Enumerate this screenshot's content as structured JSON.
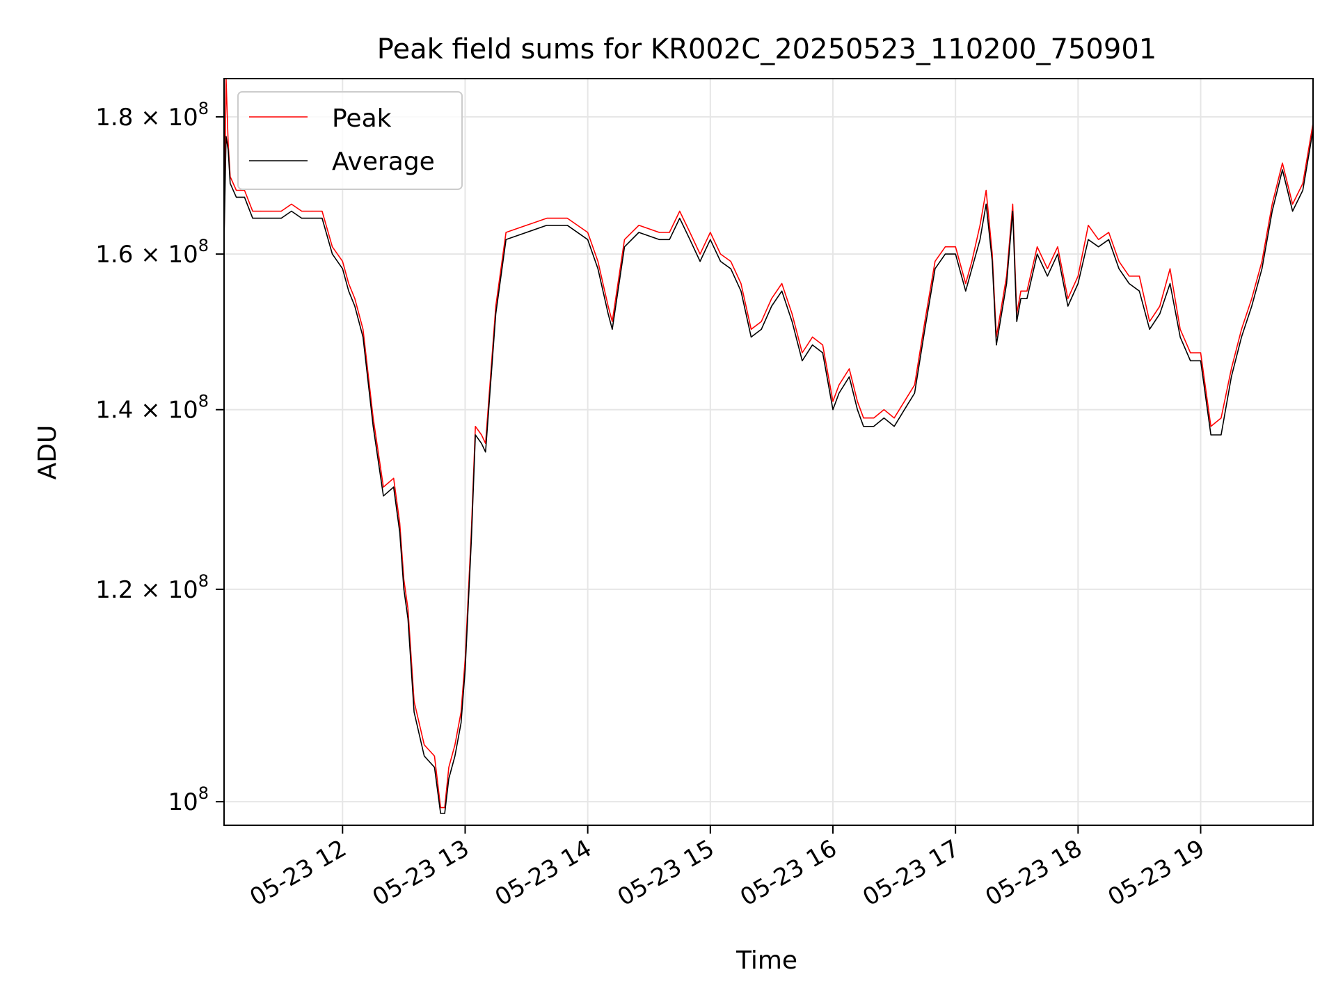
{
  "chart_data": {
    "type": "line",
    "title": "Peak field sums for KR002C_20250523_110200_750901",
    "xlabel": "Time",
    "ylabel": "ADU",
    "yscale": "log",
    "grid": true,
    "legend": {
      "position": "top-left",
      "entries": [
        "Peak",
        "Average"
      ]
    },
    "colors": {
      "Peak": "#ff0000",
      "Average": "#000000",
      "grid": "#e6e6e6"
    },
    "xlim": [
      "05-23 11:02",
      "05-23 19:55"
    ],
    "ylim": [
      98000000,
      186000000
    ],
    "x_ticks": [
      "05-23 12",
      "05-23 13",
      "05-23 14",
      "05-23 15",
      "05-23 16",
      "05-23 17",
      "05-23 18",
      "05-23 19"
    ],
    "y_ticks": [
      {
        "value": 100000000,
        "mantissa": "",
        "exp": "8"
      },
      {
        "value": 120000000,
        "mantissa": "1.2 × ",
        "exp": "8"
      },
      {
        "value": 140000000,
        "mantissa": "1.4 × ",
        "exp": "8"
      },
      {
        "value": 160000000,
        "mantissa": "1.6 × ",
        "exp": "8"
      },
      {
        "value": 180000000,
        "mantissa": "1.8 × ",
        "exp": "8"
      }
    ],
    "series": [
      {
        "name": "Average",
        "x": [
          "05-23 11:02",
          "05-23 11:03",
          "05-23 11:04",
          "05-23 11:05",
          "05-23 11:08",
          "05-23 11:12",
          "05-23 11:16",
          "05-23 11:20",
          "05-23 11:25",
          "05-23 11:30",
          "05-23 11:35",
          "05-23 11:40",
          "05-23 11:45",
          "05-23 11:50",
          "05-23 11:55",
          "05-23 12:00",
          "05-23 12:03",
          "05-23 12:06",
          "05-23 12:10",
          "05-23 12:15",
          "05-23 12:20",
          "05-23 12:25",
          "05-23 12:28",
          "05-23 12:30",
          "05-23 12:32",
          "05-23 12:35",
          "05-23 12:40",
          "05-23 12:45",
          "05-23 12:48",
          "05-23 12:50",
          "05-23 12:52",
          "05-23 12:55",
          "05-23 12:58",
          "05-23 13:00",
          "05-23 13:03",
          "05-23 13:05",
          "05-23 13:08",
          "05-23 13:10",
          "05-23 13:15",
          "05-23 13:20",
          "05-23 13:30",
          "05-23 13:40",
          "05-23 13:50",
          "05-23 14:00",
          "05-23 14:05",
          "05-23 14:10",
          "05-23 14:12",
          "05-23 14:18",
          "05-23 14:25",
          "05-23 14:35",
          "05-23 14:40",
          "05-23 14:45",
          "05-23 14:50",
          "05-23 14:55",
          "05-23 15:00",
          "05-23 15:05",
          "05-23 15:10",
          "05-23 15:15",
          "05-23 15:20",
          "05-23 15:25",
          "05-23 15:30",
          "05-23 15:35",
          "05-23 15:40",
          "05-23 15:45",
          "05-23 15:50",
          "05-23 15:55",
          "05-23 16:00",
          "05-23 16:03",
          "05-23 16:08",
          "05-23 16:12",
          "05-23 16:15",
          "05-23 16:20",
          "05-23 16:25",
          "05-23 16:30",
          "05-23 16:35",
          "05-23 16:40",
          "05-23 16:45",
          "05-23 16:50",
          "05-23 16:55",
          "05-23 17:00",
          "05-23 17:05",
          "05-23 17:08",
          "05-23 17:12",
          "05-23 17:15",
          "05-23 17:18",
          "05-23 17:20",
          "05-23 17:25",
          "05-23 17:28",
          "05-23 17:30",
          "05-23 17:32",
          "05-23 17:35",
          "05-23 17:40",
          "05-23 17:45",
          "05-23 17:50",
          "05-23 17:55",
          "05-23 18:00",
          "05-23 18:05",
          "05-23 18:10",
          "05-23 18:15",
          "05-23 18:20",
          "05-23 18:25",
          "05-23 18:30",
          "05-23 18:35",
          "05-23 18:40",
          "05-23 18:45",
          "05-23 18:50",
          "05-23 18:55",
          "05-23 19:00",
          "05-23 19:05",
          "05-23 19:10",
          "05-23 19:15",
          "05-23 19:20",
          "05-23 19:25",
          "05-23 19:30",
          "05-23 19:35",
          "05-23 19:40",
          "05-23 19:45",
          "05-23 19:50",
          "05-23 19:55"
        ],
        "values": [
          162000000,
          177000000,
          175000000,
          170000000,
          168000000,
          168000000,
          165000000,
          165000000,
          165000000,
          165000000,
          166000000,
          165000000,
          165000000,
          165000000,
          160000000,
          158000000,
          155000000,
          153000000,
          149000000,
          138000000,
          130000000,
          131000000,
          126000000,
          120000000,
          117000000,
          108000000,
          104000000,
          103000000,
          99000000,
          99000000,
          102000000,
          104000000,
          107000000,
          112000000,
          125000000,
          137000000,
          136000000,
          135000000,
          152000000,
          162000000,
          163000000,
          164000000,
          164000000,
          162000000,
          158000000,
          152000000,
          150000000,
          161000000,
          163000000,
          162000000,
          162000000,
          165000000,
          162000000,
          159000000,
          162000000,
          159000000,
          158000000,
          155000000,
          149000000,
          150000000,
          153000000,
          155000000,
          151000000,
          146000000,
          148000000,
          147000000,
          140000000,
          142000000,
          144000000,
          140000000,
          138000000,
          138000000,
          139000000,
          138000000,
          140000000,
          142000000,
          150000000,
          158000000,
          160000000,
          160000000,
          155000000,
          158000000,
          162000000,
          167000000,
          159000000,
          148000000,
          156000000,
          166000000,
          151000000,
          154000000,
          154000000,
          160000000,
          157000000,
          160000000,
          153000000,
          156000000,
          162000000,
          161000000,
          162000000,
          158000000,
          156000000,
          155000000,
          150000000,
          152000000,
          156000000,
          149000000,
          146000000,
          146000000,
          137000000,
          137000000,
          144000000,
          149000000,
          153000000,
          158000000,
          166000000,
          172000000,
          166000000,
          169000000,
          178000000
        ]
      },
      {
        "name": "Peak",
        "x": [
          "05-23 11:02",
          "05-23 11:03",
          "05-23 11:04",
          "05-23 11:05",
          "05-23 11:08",
          "05-23 11:12",
          "05-23 11:16",
          "05-23 11:20",
          "05-23 11:25",
          "05-23 11:30",
          "05-23 11:35",
          "05-23 11:40",
          "05-23 11:45",
          "05-23 11:50",
          "05-23 11:55",
          "05-23 12:00",
          "05-23 12:03",
          "05-23 12:06",
          "05-23 12:10",
          "05-23 12:15",
          "05-23 12:20",
          "05-23 12:25",
          "05-23 12:28",
          "05-23 12:30",
          "05-23 12:32",
          "05-23 12:35",
          "05-23 12:40",
          "05-23 12:45",
          "05-23 12:48",
          "05-23 12:50",
          "05-23 12:52",
          "05-23 12:55",
          "05-23 12:58",
          "05-23 13:00",
          "05-23 13:03",
          "05-23 13:05",
          "05-23 13:08",
          "05-23 13:10",
          "05-23 13:15",
          "05-23 13:20",
          "05-23 13:30",
          "05-23 13:40",
          "05-23 13:50",
          "05-23 14:00",
          "05-23 14:05",
          "05-23 14:10",
          "05-23 14:12",
          "05-23 14:18",
          "05-23 14:25",
          "05-23 14:35",
          "05-23 14:40",
          "05-23 14:45",
          "05-23 14:50",
          "05-23 14:55",
          "05-23 15:00",
          "05-23 15:05",
          "05-23 15:10",
          "05-23 15:15",
          "05-23 15:20",
          "05-23 15:25",
          "05-23 15:30",
          "05-23 15:35",
          "05-23 15:40",
          "05-23 15:45",
          "05-23 15:50",
          "05-23 15:55",
          "05-23 16:00",
          "05-23 16:03",
          "05-23 16:08",
          "05-23 16:12",
          "05-23 16:15",
          "05-23 16:20",
          "05-23 16:25",
          "05-23 16:30",
          "05-23 16:35",
          "05-23 16:40",
          "05-23 16:45",
          "05-23 16:50",
          "05-23 16:55",
          "05-23 17:00",
          "05-23 17:05",
          "05-23 17:08",
          "05-23 17:12",
          "05-23 17:15",
          "05-23 17:18",
          "05-23 17:20",
          "05-23 17:25",
          "05-23 17:28",
          "05-23 17:30",
          "05-23 17:32",
          "05-23 17:35",
          "05-23 17:40",
          "05-23 17:45",
          "05-23 17:50",
          "05-23 17:55",
          "05-23 18:00",
          "05-23 18:05",
          "05-23 18:10",
          "05-23 18:15",
          "05-23 18:20",
          "05-23 18:25",
          "05-23 18:30",
          "05-23 18:35",
          "05-23 18:40",
          "05-23 18:45",
          "05-23 18:50",
          "05-23 18:55",
          "05-23 19:00",
          "05-23 19:05",
          "05-23 19:10",
          "05-23 19:15",
          "05-23 19:20",
          "05-23 19:25",
          "05-23 19:30",
          "05-23 19:35",
          "05-23 19:40",
          "05-23 19:45",
          "05-23 19:50",
          "05-23 19:55"
        ],
        "values": [
          162000000,
          186000000,
          176000000,
          171000000,
          169000000,
          169000000,
          166000000,
          166000000,
          166000000,
          166000000,
          167000000,
          166000000,
          166000000,
          166000000,
          161000000,
          159000000,
          156000000,
          154000000,
          150000000,
          139000000,
          131000000,
          132000000,
          127000000,
          121000000,
          118000000,
          109000000,
          105000000,
          104000000,
          99500000,
          99500000,
          103000000,
          105000000,
          108000000,
          113000000,
          126000000,
          138000000,
          137000000,
          136000000,
          153000000,
          163000000,
          164000000,
          165000000,
          165000000,
          163000000,
          159000000,
          153000000,
          151000000,
          162000000,
          164000000,
          163000000,
          163000000,
          166000000,
          163000000,
          160000000,
          163000000,
          160000000,
          159000000,
          156000000,
          150000000,
          151000000,
          154000000,
          156000000,
          152000000,
          147000000,
          149000000,
          148000000,
          141000000,
          143000000,
          145000000,
          141000000,
          139000000,
          139000000,
          140000000,
          139000000,
          141000000,
          143000000,
          151000000,
          159000000,
          161000000,
          161000000,
          156000000,
          159000000,
          164000000,
          169000000,
          160000000,
          149000000,
          157000000,
          167000000,
          152000000,
          155000000,
          155000000,
          161000000,
          158000000,
          161000000,
          154000000,
          157000000,
          164000000,
          162000000,
          163000000,
          159000000,
          157000000,
          157000000,
          151000000,
          153000000,
          158000000,
          150000000,
          147000000,
          147000000,
          138000000,
          139000000,
          145000000,
          150000000,
          154000000,
          159000000,
          167000000,
          173000000,
          167000000,
          170000000,
          179000000
        ]
      }
    ]
  }
}
